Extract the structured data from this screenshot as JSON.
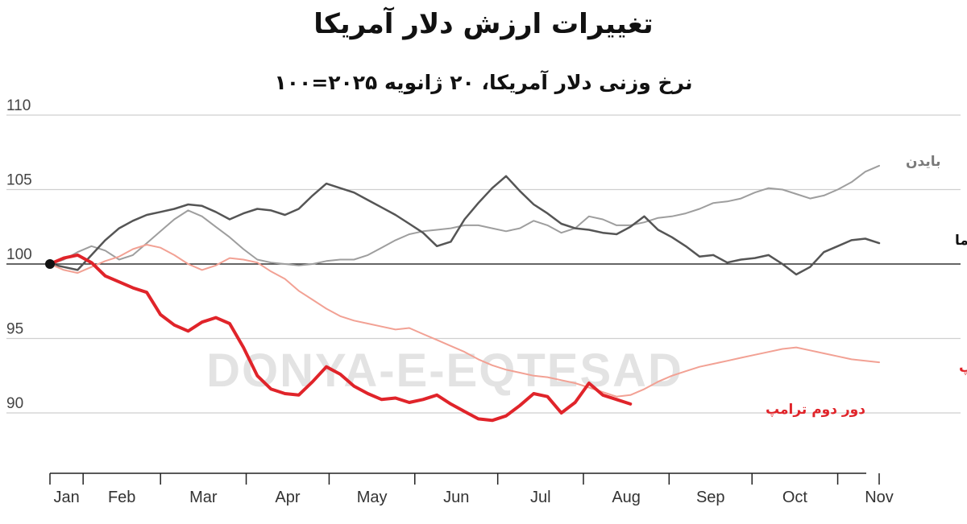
{
  "chart_data": {
    "type": "line",
    "title": "تغییرات ارزش دلار آمریکا",
    "subtitle": "نرخ وزنی دلار آمریکا، ۲۰ ژانویه ۲۰۲۵=۱۰۰",
    "watermark": "DONYA-E-EQTESAD",
    "xlabel": "",
    "ylabel": "",
    "ylim": [
      84,
      112
    ],
    "yticks": [
      90,
      95,
      100,
      105,
      110
    ],
    "x_unit": "days since Jan 20",
    "xlim": [
      0,
      330
    ],
    "months": [
      {
        "label": "Jan",
        "day": 0
      },
      {
        "label": "Feb",
        "day": 12
      },
      {
        "label": "Mar",
        "day": 40
      },
      {
        "label": "Apr",
        "day": 71
      },
      {
        "label": "May",
        "day": 101
      },
      {
        "label": "Jun",
        "day": 132
      },
      {
        "label": "Jul",
        "day": 162
      },
      {
        "label": "Aug",
        "day": 193
      },
      {
        "label": "Sep",
        "day": 224
      },
      {
        "label": "Oct",
        "day": 254
      },
      {
        "label": "Nov",
        "day": 285
      }
    ],
    "baseline": 100,
    "start_marker": {
      "x": 0,
      "y": 100
    },
    "series": [
      {
        "name": "بایدن",
        "color": "#9e9e9e",
        "width": 2,
        "x": [
          0,
          5,
          10,
          15,
          20,
          25,
          30,
          35,
          40,
          45,
          50,
          55,
          60,
          65,
          70,
          75,
          80,
          85,
          90,
          95,
          100,
          105,
          110,
          115,
          120,
          125,
          130,
          135,
          140,
          145,
          150,
          155,
          160,
          165,
          170,
          175,
          180,
          185,
          190,
          195,
          200,
          205,
          210,
          215,
          220,
          225,
          230,
          235,
          240,
          245,
          250,
          255,
          260,
          265,
          270,
          275,
          280,
          285,
          290,
          295,
          300
        ],
        "y": [
          100,
          100.3,
          100.8,
          101.2,
          100.9,
          100.3,
          100.6,
          101.4,
          102.2,
          103.0,
          103.6,
          103.2,
          102.5,
          101.8,
          101.0,
          100.3,
          100.1,
          100.0,
          99.9,
          100.0,
          100.2,
          100.3,
          100.3,
          100.6,
          101.1,
          101.6,
          102.0,
          102.2,
          102.3,
          102.4,
          102.6,
          102.6,
          102.4,
          102.2,
          102.4,
          102.9,
          102.6,
          102.1,
          102.4,
          103.2,
          103.0,
          102.6,
          102.6,
          102.8,
          103.1,
          103.2,
          103.4,
          103.7,
          104.1,
          104.2,
          104.4,
          104.8,
          105.1,
          105.0,
          104.7,
          104.4,
          104.6,
          105.0,
          105.5,
          106.2,
          106.6
        ]
      },
      {
        "name": "دور دوم اوباما",
        "color": "#555555",
        "width": 2.5,
        "x": [
          0,
          5,
          10,
          15,
          20,
          25,
          30,
          35,
          40,
          45,
          50,
          55,
          60,
          65,
          70,
          75,
          80,
          85,
          90,
          95,
          100,
          105,
          110,
          115,
          120,
          125,
          130,
          135,
          140,
          145,
          150,
          155,
          160,
          165,
          170,
          175,
          180,
          185,
          190,
          195,
          200,
          205,
          210,
          215,
          220,
          225,
          230,
          235,
          240,
          245,
          250,
          255,
          260,
          265,
          270,
          275,
          280,
          285,
          290,
          295,
          300
        ],
        "y": [
          100,
          99.8,
          99.6,
          100.6,
          101.6,
          102.4,
          102.9,
          103.3,
          103.5,
          103.7,
          104.0,
          103.9,
          103.5,
          103.0,
          103.4,
          103.7,
          103.6,
          103.3,
          103.7,
          104.6,
          105.4,
          105.1,
          104.8,
          104.3,
          103.8,
          103.3,
          102.7,
          102.1,
          101.2,
          101.5,
          103.0,
          104.1,
          105.1,
          105.9,
          104.9,
          104.0,
          103.4,
          102.7,
          102.4,
          102.3,
          102.1,
          102.0,
          102.5,
          103.2,
          102.3,
          101.8,
          101.2,
          100.5,
          100.6,
          100.1,
          100.3,
          100.4,
          100.6,
          100.0,
          99.3,
          99.8,
          100.8,
          101.2,
          101.6,
          101.7,
          101.4
        ]
      },
      {
        "name": "دور اول ترامپ",
        "color": "#f2a194",
        "width": 2,
        "x": [
          0,
          5,
          10,
          15,
          20,
          25,
          30,
          35,
          40,
          45,
          50,
          55,
          60,
          65,
          70,
          75,
          80,
          85,
          90,
          95,
          100,
          105,
          110,
          115,
          120,
          125,
          130,
          135,
          140,
          145,
          150,
          155,
          160,
          165,
          170,
          175,
          180,
          185,
          190,
          195,
          200,
          205,
          210,
          215,
          220,
          225,
          230,
          235,
          240,
          245,
          250,
          255,
          260,
          265,
          270,
          275,
          280,
          285,
          290,
          295,
          300
        ],
        "y": [
          100,
          99.6,
          99.4,
          99.8,
          100.2,
          100.5,
          101.0,
          101.3,
          101.1,
          100.6,
          100.0,
          99.6,
          99.9,
          100.4,
          100.3,
          100.1,
          99.5,
          99.0,
          98.2,
          97.6,
          97.0,
          96.5,
          96.2,
          96.0,
          95.8,
          95.6,
          95.7,
          95.3,
          94.9,
          94.5,
          94.1,
          93.6,
          93.2,
          92.9,
          92.7,
          92.5,
          92.4,
          92.2,
          92.0,
          91.7,
          91.4,
          91.1,
          91.2,
          91.6,
          92.1,
          92.5,
          92.8,
          93.1,
          93.3,
          93.5,
          93.7,
          93.9,
          94.1,
          94.3,
          94.4,
          94.2,
          94.0,
          93.8,
          93.6,
          93.5,
          93.4
        ]
      },
      {
        "name": "دور دوم ترامپ",
        "color": "#e0242a",
        "width": 4,
        "x": [
          0,
          5,
          10,
          15,
          20,
          25,
          30,
          35,
          40,
          45,
          50,
          55,
          60,
          65,
          70,
          75,
          80,
          85,
          90,
          95,
          100,
          105,
          110,
          115,
          120,
          125,
          130,
          135,
          140,
          145,
          150,
          155,
          160,
          165,
          170,
          175,
          180,
          185,
          190,
          195,
          200,
          205,
          210
        ],
        "y": [
          100,
          100.4,
          100.6,
          100.1,
          99.2,
          98.8,
          98.4,
          98.1,
          96.6,
          95.9,
          95.5,
          96.1,
          96.4,
          96.0,
          94.4,
          92.5,
          91.6,
          91.3,
          91.2,
          92.1,
          93.1,
          92.6,
          91.8,
          91.3,
          90.9,
          91.0,
          90.7,
          90.9,
          91.2,
          90.6,
          90.1,
          89.6,
          89.5,
          89.8,
          90.5,
          91.3,
          91.1,
          90.0,
          90.7,
          92.0,
          91.2,
          90.9,
          90.6
        ]
      }
    ],
    "label_texts": {
      "biden": "بایدن",
      "obama": "دور دوم اوباما",
      "trump1": "دور اول ترامپ",
      "trump2": "دور دوم ترامپ"
    }
  }
}
